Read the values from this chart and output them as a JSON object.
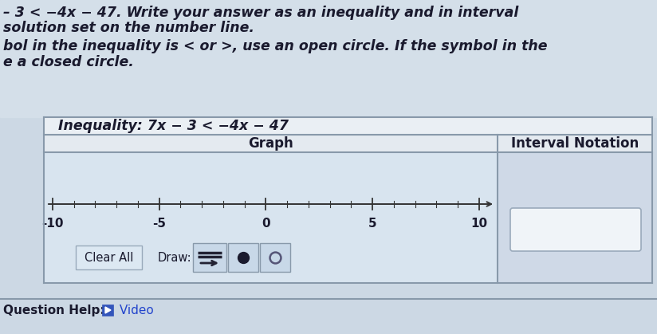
{
  "title_line1": "– 3 < −4x − 47. Write your answer as an inequality and in interval",
  "title_line2": "solution set on the number line.",
  "instruction_line1": "bol in the inequality is < or >, use an open circle. If the symbol in the",
  "instruction_line2": "e a closed circle.",
  "inequality_label": "Inequality: 7x − 3 < −4x − 47",
  "graph_label": "Graph",
  "interval_label": "Interval Notation",
  "number_line_ticks": [
    -10,
    -5,
    0,
    5,
    10
  ],
  "number_line_labels": [
    "-10",
    "-5",
    "0",
    "5",
    "10"
  ],
  "clear_all_text": "Clear All",
  "draw_text": "Draw:",
  "question_help_text": "Question Help:",
  "video_text": " Video",
  "bg_color": "#ccd8e4",
  "top_text_bg": "#d0dce8",
  "table_outer_bg": "#c5d3e0",
  "ineq_row_bg": "#e8eef4",
  "header_row_bg": "#e0e8f0",
  "graph_cell_bg": "#d8e5f0",
  "interval_cell_bg": "#d0dceb",
  "interval_box_bg": "#f0f4f8",
  "button_box_bg": "#c8d8e8",
  "text_color": "#1a1a2e",
  "line_color": "#333333",
  "tick_color": "#333333",
  "arrow_btn_color": "#3050a0",
  "dot_color": "#1a1a2e",
  "circle_edge_color": "#555577",
  "border_color": "#8899aa",
  "interval_box_border": "#9aaabb"
}
